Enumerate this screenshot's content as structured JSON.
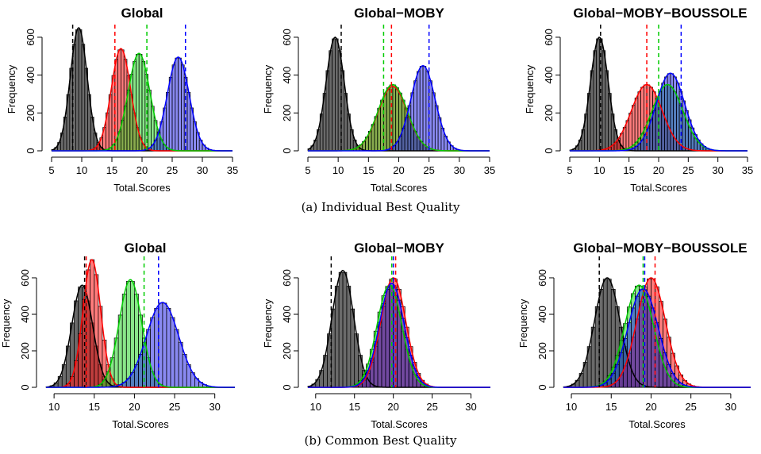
{
  "captions": {
    "a": "(a) Individual Best Quality",
    "b": "(b) Common Best Quality"
  },
  "colors": {
    "black": "#000000",
    "red": "#ff0000",
    "green": "#00cc00",
    "blue": "#0000ff"
  },
  "chart_data": [
    {
      "id": "a1",
      "type": "histogram",
      "title": "Global",
      "xlabel": "Total.Scores",
      "ylabel": "Frequency",
      "xlim": [
        5,
        35
      ],
      "ylim": [
        0,
        650
      ],
      "xticks": [
        5,
        10,
        15,
        20,
        25,
        30,
        35
      ],
      "yticks": [
        0,
        200,
        400,
        600
      ],
      "series": [
        {
          "color": "black",
          "mean": 9.5,
          "sd": 1.4,
          "peak": 650,
          "vline": 8.5
        },
        {
          "color": "red",
          "mean": 16.5,
          "sd": 1.6,
          "peak": 540,
          "vline": 15.5
        },
        {
          "color": "green",
          "mean": 19.5,
          "sd": 1.8,
          "peak": 515,
          "vline": 20.8
        },
        {
          "color": "blue",
          "mean": 26.0,
          "sd": 1.8,
          "peak": 495,
          "vline": 27.2
        }
      ]
    },
    {
      "id": "a2",
      "type": "histogram",
      "title": "Global−MOBY",
      "xlabel": "Total.Scores",
      "ylabel": "Frequency",
      "xlim": [
        5,
        35
      ],
      "ylim": [
        0,
        650
      ],
      "xticks": [
        5,
        10,
        15,
        20,
        25,
        30,
        35
      ],
      "yticks": [
        0,
        200,
        400,
        600
      ],
      "series": [
        {
          "color": "black",
          "mean": 9.5,
          "sd": 1.5,
          "peak": 600,
          "vline": 10.5
        },
        {
          "color": "red",
          "mean": 19.0,
          "sd": 2.4,
          "peak": 340,
          "vline": 18.8
        },
        {
          "color": "green",
          "mean": 19.0,
          "sd": 2.4,
          "peak": 350,
          "vline": 17.5
        },
        {
          "color": "blue",
          "mean": 24.0,
          "sd": 2.0,
          "peak": 450,
          "vline": 25.0
        }
      ]
    },
    {
      "id": "a3",
      "type": "histogram",
      "title": "Global−MOBY−BOUSSOLE",
      "xlabel": "Total.Scores",
      "ylabel": "Frequency",
      "xlim": [
        5,
        35
      ],
      "ylim": [
        0,
        650
      ],
      "xticks": [
        5,
        10,
        15,
        20,
        25,
        30,
        35
      ],
      "yticks": [
        0,
        200,
        400,
        600
      ],
      "series": [
        {
          "color": "black",
          "mean": 10.0,
          "sd": 1.5,
          "peak": 600,
          "vline": 10.2
        },
        {
          "color": "red",
          "mean": 18.0,
          "sd": 2.6,
          "peak": 350,
          "vline": 18.0
        },
        {
          "color": "green",
          "mean": 21.5,
          "sd": 2.6,
          "peak": 350,
          "vline": 20.0
        },
        {
          "color": "blue",
          "mean": 22.0,
          "sd": 2.4,
          "peak": 410,
          "vline": 23.8
        }
      ]
    },
    {
      "id": "b1",
      "type": "histogram",
      "title": "Global",
      "xlabel": "Total.Scores",
      "ylabel": "Frequency",
      "xlim": [
        9,
        32.5
      ],
      "ylim": [
        0,
        700
      ],
      "xticks": [
        10,
        15,
        20,
        25,
        30
      ],
      "yticks": [
        0,
        200,
        400,
        600
      ],
      "series": [
        {
          "color": "black",
          "mean": 13.5,
          "sd": 1.3,
          "peak": 560,
          "vline": 13.8
        },
        {
          "color": "red",
          "mean": 14.7,
          "sd": 1.1,
          "peak": 700,
          "vline": 14.0
        },
        {
          "color": "green",
          "mean": 19.5,
          "sd": 1.4,
          "peak": 590,
          "vline": 21.2
        },
        {
          "color": "blue",
          "mean": 23.5,
          "sd": 2.0,
          "peak": 465,
          "vline": 23.0
        }
      ]
    },
    {
      "id": "b2",
      "type": "histogram",
      "title": "Global−MOBY",
      "xlabel": "Total.Scores",
      "ylabel": "Frequency",
      "xlim": [
        9,
        32.5
      ],
      "ylim": [
        0,
        700
      ],
      "xticks": [
        10,
        15,
        20,
        25,
        30
      ],
      "yticks": [
        0,
        200,
        400,
        600
      ],
      "series": [
        {
          "color": "black",
          "mean": 13.5,
          "sd": 1.4,
          "peak": 640,
          "vline": 12.0
        },
        {
          "color": "green",
          "mean": 19.5,
          "sd": 1.6,
          "peak": 560,
          "vline": 19.8
        },
        {
          "color": "red",
          "mean": 20.0,
          "sd": 1.6,
          "peak": 600,
          "vline": 20.3
        },
        {
          "color": "blue",
          "mean": 19.8,
          "sd": 1.6,
          "peak": 570,
          "vline": 20.0
        }
      ]
    },
    {
      "id": "b3",
      "type": "histogram",
      "title": "Global−MOBY−BOUSSOLE",
      "xlabel": "Total.Scores",
      "ylabel": "Frequency",
      "xlim": [
        9,
        32.5
      ],
      "ylim": [
        0,
        700
      ],
      "xticks": [
        10,
        15,
        20,
        25,
        30
      ],
      "yticks": [
        0,
        200,
        400,
        600
      ],
      "series": [
        {
          "color": "black",
          "mean": 14.5,
          "sd": 1.6,
          "peak": 600,
          "vline": 13.5
        },
        {
          "color": "green",
          "mean": 18.5,
          "sd": 1.8,
          "peak": 560,
          "vline": 19.0
        },
        {
          "color": "red",
          "mean": 20.0,
          "sd": 1.8,
          "peak": 600,
          "vline": 20.5
        },
        {
          "color": "blue",
          "mean": 19.0,
          "sd": 1.9,
          "peak": 540,
          "vline": 19.2
        }
      ]
    }
  ]
}
